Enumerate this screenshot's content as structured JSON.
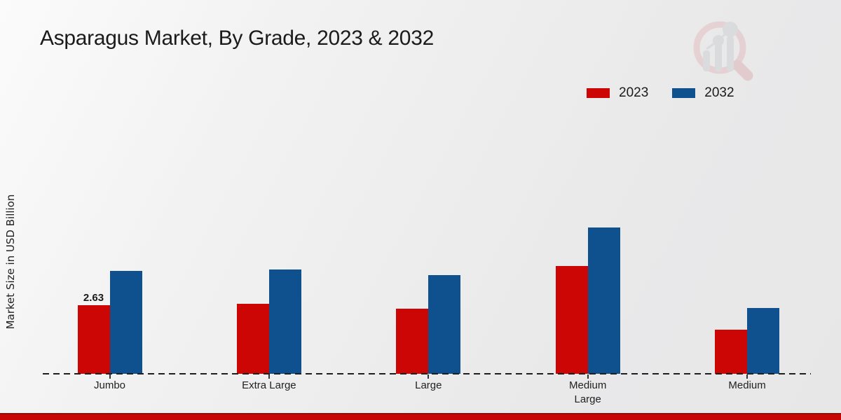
{
  "title": "Asparagus Market, By Grade, 2023 & 2032",
  "ylabel": "Market Size in USD Billion",
  "legend": {
    "items": [
      {
        "label": "2023",
        "color": "#cc0505"
      },
      {
        "label": "2032",
        "color": "#0f508f"
      }
    ]
  },
  "chart_data": {
    "type": "bar",
    "categories": [
      "Jumbo",
      "Extra Large",
      "Large",
      "Medium Large",
      "Medium"
    ],
    "series": [
      {
        "name": "2023",
        "color": "#cc0505",
        "values": [
          2.63,
          2.69,
          2.5,
          4.13,
          1.69
        ]
      },
      {
        "name": "2032",
        "color": "#0f508f",
        "values": [
          3.95,
          4.0,
          3.79,
          5.62,
          2.52
        ]
      }
    ],
    "title": "Asparagus Market, By Grade, 2023 & 2032",
    "xlabel": "",
    "ylabel": "Market Size in USD Billion",
    "ylim": [
      0,
      7
    ],
    "grid": false,
    "legend_position": "top-right",
    "bar_value_labels": [
      {
        "category": "Jumbo",
        "series": "2023",
        "text": "2.63"
      }
    ]
  },
  "colors": {
    "accent_footer": "#c70707",
    "background": "#ebebec",
    "baseline": "#1e1e1e"
  }
}
